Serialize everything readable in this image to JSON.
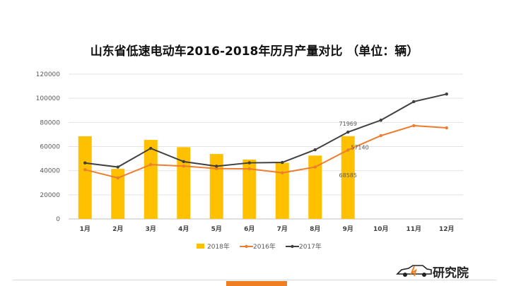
{
  "chart_data": {
    "type": "bar+line",
    "title": "山东省低速电动车2016-2018年历月产量对比 （单位：辆）",
    "categories": [
      "1月",
      "2月",
      "3月",
      "4月",
      "5月",
      "6月",
      "7月",
      "8月",
      "9月",
      "10月",
      "11月",
      "12月"
    ],
    "ylim": [
      0,
      120000
    ],
    "yticks": [
      0,
      20000,
      40000,
      60000,
      80000,
      100000,
      120000
    ],
    "grid": true,
    "legend_position": "bottom",
    "series": [
      {
        "name": "2018年",
        "type": "bar",
        "color": "#ffc000",
        "values": [
          68500,
          41500,
          65500,
          59500,
          53800,
          49200,
          46500,
          52500,
          68585,
          null,
          null,
          null
        ]
      },
      {
        "name": "2016年",
        "type": "line",
        "color": "#ed7d31",
        "values": [
          40800,
          34000,
          45000,
          43800,
          41700,
          41500,
          38200,
          43000,
          57140,
          69000,
          77300,
          75500
        ]
      },
      {
        "name": "2017年",
        "type": "line",
        "color": "#404040",
        "values": [
          46400,
          43000,
          58500,
          47500,
          43700,
          46500,
          46800,
          57300,
          71969,
          81800,
          97200,
          103500
        ]
      }
    ],
    "data_labels": [
      {
        "text": "71969",
        "series": "2017年",
        "category": "9月"
      },
      {
        "text": "57140",
        "series": "2016年",
        "category": "9月"
      },
      {
        "text": "68585",
        "series": "2018年",
        "category": "9月"
      }
    ]
  },
  "brand": {
    "logo_text": "研究院",
    "logo_icon": "car-logo-icon",
    "accent_color": "#ef7d22"
  }
}
